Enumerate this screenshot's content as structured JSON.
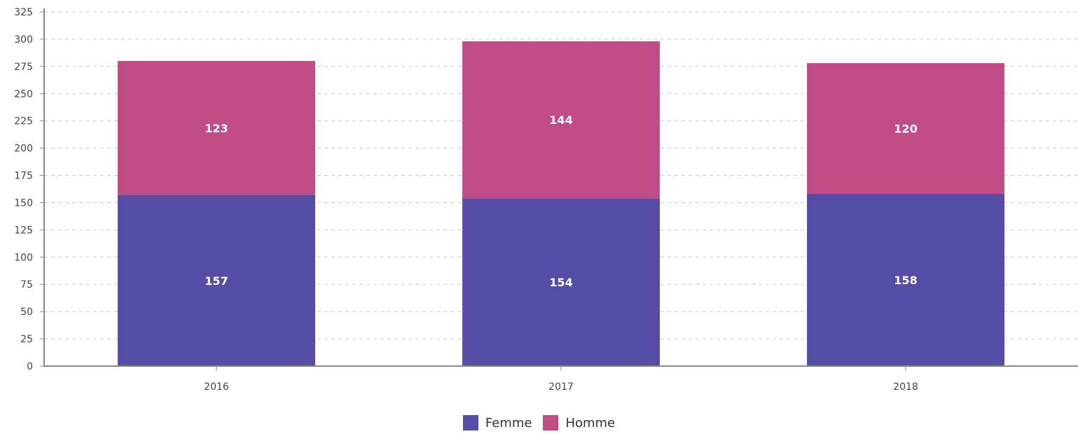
{
  "chart_data": {
    "type": "bar",
    "stacked": true,
    "title": "",
    "xlabel": "",
    "ylabel": "",
    "categories": [
      "2016",
      "2017",
      "2018"
    ],
    "series": [
      {
        "name": "Femme",
        "values": [
          157,
          154,
          158
        ],
        "color": "#544ca5"
      },
      {
        "name": "Homme",
        "values": [
          123,
          144,
          120
        ],
        "color": "#c14b86"
      }
    ],
    "ylim": [
      0,
      325
    ],
    "yticks": [
      0,
      25,
      50,
      75,
      100,
      125,
      150,
      175,
      200,
      225,
      250,
      275,
      300,
      325
    ],
    "grid": true,
    "legend_position": "bottom-center",
    "axis_color": "#888888",
    "grid_color": "#c8c8c8"
  }
}
